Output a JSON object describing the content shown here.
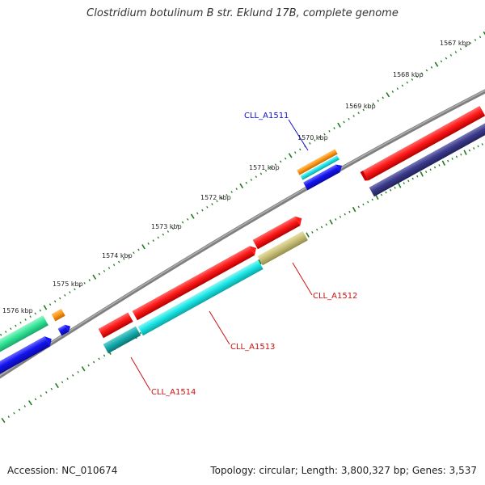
{
  "title": "Clostridium botulinum B str. Eklund 17B, complete genome",
  "footer": {
    "accession": "Accession: NC_010674",
    "summary": "Topology: circular; Length: 3,800,327 bp; Genes: 3,537"
  },
  "scale": {
    "unit": "kbp",
    "ticks": [
      "1567 kbp",
      "1568 kbp",
      "1569 kbp",
      "1570 kbp",
      "1571 kbp",
      "1572 kbp",
      "1573 kbp",
      "1574 kbp",
      "1575 kbp",
      "1576 kbp"
    ]
  },
  "gene_labels": [
    {
      "name": "CLL_A1511",
      "color": "#1010cc"
    },
    {
      "name": "CLL_A1512",
      "color": "#cc1010"
    },
    {
      "name": "CLL_A1513",
      "color": "#cc1010"
    },
    {
      "name": "CLL_A1514",
      "color": "#cc1010"
    }
  ],
  "colors": {
    "backbone": "#7f7f7f",
    "tick_marks": "#1f7a1f",
    "red_feature": "#ff1a1a",
    "cyan_feature": "#19e6e6",
    "blue_feature": "#1414f0",
    "orange_feature": "#ff9919",
    "green_feature": "#33e699",
    "navy_feature": "#3b3b8c",
    "khaki_feature": "#c8c078"
  }
}
